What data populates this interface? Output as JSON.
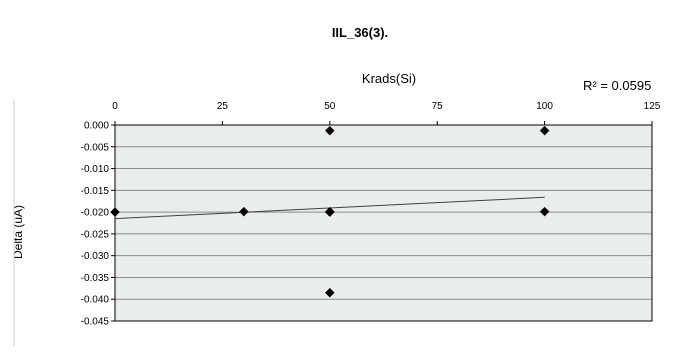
{
  "chart_data": {
    "type": "scatter",
    "title": "IIL_36(3).",
    "xlabel": "Krads(Si)",
    "ylabel": "Delta (uA)",
    "xlim": [
      0,
      125
    ],
    "ylim": [
      -0.045,
      0.0
    ],
    "x_ticks": [
      0,
      25,
      50,
      75,
      100,
      125
    ],
    "y_ticks": [
      0.0,
      -0.005,
      -0.01,
      -0.015,
      -0.02,
      -0.025,
      -0.03,
      -0.035,
      -0.04,
      -0.045
    ],
    "x_tick_labels": [
      "0",
      "25",
      "50",
      "75",
      "100",
      "125"
    ],
    "y_tick_labels": [
      "0.000",
      "-0.005",
      "-0.010",
      "-0.015",
      "-0.020",
      "-0.025",
      "-0.030",
      "-0.035",
      "-0.040",
      "-0.045"
    ],
    "x_axis_position": "top",
    "y_axis_inverted": true,
    "grid": "horizontal",
    "series": [
      {
        "marker": "diamond",
        "color": "#000000",
        "points": [
          {
            "x": 0,
            "y": -0.02
          },
          {
            "x": 30,
            "y": -0.0199
          },
          {
            "x": 50,
            "y": -0.0013
          },
          {
            "x": 50,
            "y": -0.0199
          },
          {
            "x": 50,
            "y": -0.02
          },
          {
            "x": 50,
            "y": -0.0385
          },
          {
            "x": 100,
            "y": -0.0013
          },
          {
            "x": 100,
            "y": -0.0199
          }
        ]
      }
    ],
    "trendline": {
      "type": "linear",
      "x_range": [
        0,
        100
      ],
      "y_start": -0.0215,
      "y_end": -0.0166,
      "color": "#404040"
    },
    "annotation": "R² = 0.0595",
    "plot_background": "#eaeeeb"
  }
}
